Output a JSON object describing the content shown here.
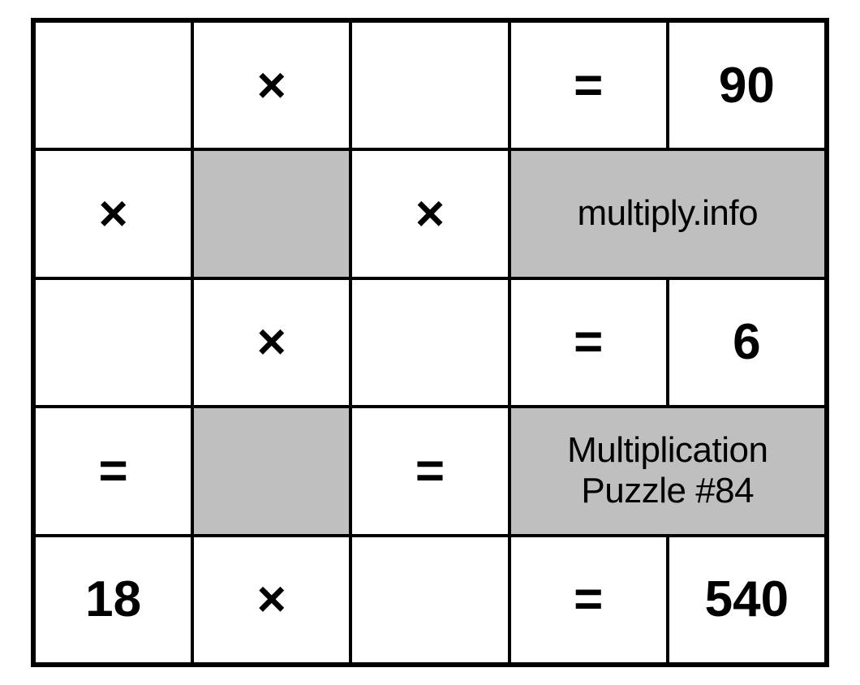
{
  "grid": {
    "type": "table",
    "rows": 5,
    "cols": 5,
    "cell_border_color": "#000000",
    "cell_border_width": 2,
    "outer_border_width": 4,
    "background_color": "#ffffff",
    "shaded_color": "#bfbfbf",
    "number_fontsize": 62,
    "number_fontweight": 700,
    "label_fontsize": 44,
    "label_fontweight": 400,
    "cells": {
      "r0c0": "",
      "r0c1": "×",
      "r0c2": "",
      "r0c3": "=",
      "r0c4": "90",
      "r1c0": "×",
      "r1c1": "",
      "r1c2": "×",
      "r1c3_4": "multiply.info",
      "r2c0": "",
      "r2c1": "×",
      "r2c2": "",
      "r2c3": "=",
      "r2c4": "6",
      "r3c0": "=",
      "r3c1": "",
      "r3c2": "=",
      "r3c3_4": "Multiplication\nPuzzle #84",
      "r4c0": "18",
      "r4c1": "×",
      "r4c2": "",
      "r4c3": "=",
      "r4c4": "540"
    }
  }
}
